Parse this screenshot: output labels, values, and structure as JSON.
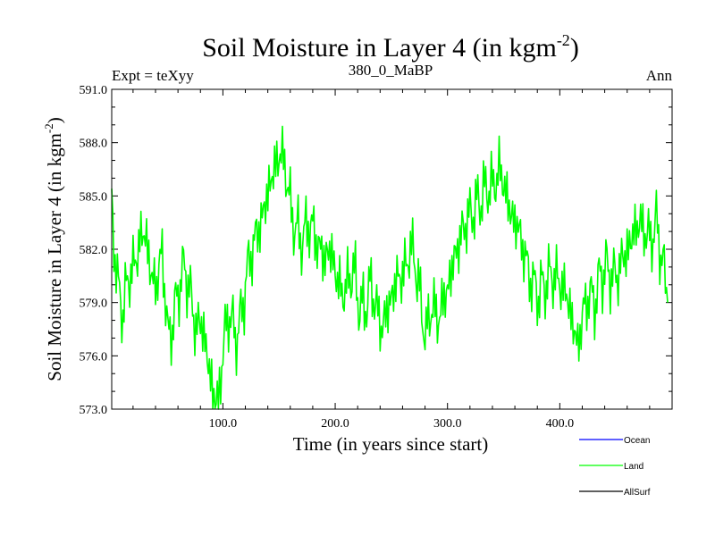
{
  "chart_data": {
    "type": "line",
    "title_main": "Soil Moisture in Layer 4 (in kgm",
    "title_sup": "-2",
    "title_close": ")",
    "subtitle_left": "Expt = teXyy",
    "subtitle_center": "380_0_MaBP",
    "subtitle_right": "Ann",
    "xlabel": "Time (in years since start)",
    "ylabel_main": "Soil Moisture in Layer 4 (in kgm",
    "ylabel_sup": "-2",
    "ylabel_close": ")",
    "xlim": [
      1,
      500
    ],
    "ylim": [
      573.0,
      591.0
    ],
    "x_ticks": [
      100,
      200,
      300,
      400
    ],
    "x_tick_labels": [
      "100.0",
      "200.0",
      "300.0",
      "400.0"
    ],
    "y_ticks": [
      573,
      576,
      579,
      582,
      585,
      588,
      591
    ],
    "y_tick_labels": [
      "573.0",
      "576.0",
      "579.0",
      "582.0",
      "585.0",
      "588.0",
      "591.0"
    ],
    "legend": [
      {
        "name": "Ocean",
        "color": "#0000ff"
      },
      {
        "name": "Land",
        "color": "#00ff00"
      },
      {
        "name": "AllSurf",
        "color": "#000000"
      }
    ],
    "series": [
      {
        "name": "Land",
        "color": "#00ff00",
        "x_start": 1,
        "x_step": 5,
        "values": [
          584.5,
          580.0,
          578.5,
          580.5,
          581.0,
          582.5,
          583.0,
          580.5,
          580.0,
          582.0,
          577.0,
          578.0,
          580.0,
          581.0,
          579.5,
          577.5,
          578.0,
          576.0,
          574.0,
          573.3,
          577.0,
          578.5,
          577.0,
          578.0,
          580.5,
          582.0,
          583.0,
          584.0,
          585.5,
          586.5,
          587.5,
          586.5,
          584.0,
          583.0,
          582.5,
          583.5,
          583.0,
          582.0,
          581.5,
          582.0,
          580.5,
          579.5,
          580.0,
          581.0,
          579.0,
          578.5,
          580.0,
          579.0,
          577.5,
          578.5,
          579.5,
          580.5,
          580.5,
          582.0,
          581.5,
          579.0,
          577.0,
          579.0,
          578.0,
          579.0,
          580.0,
          581.5,
          582.5,
          583.5,
          584.0,
          584.5,
          585.0,
          585.5,
          585.5,
          586.5,
          585.5,
          584.0,
          583.5,
          582.5,
          581.0,
          580.0,
          579.5,
          580.0,
          580.5,
          580.5,
          580.0,
          579.5,
          578.0,
          576.5,
          578.5,
          579.5,
          579.0,
          580.5,
          581.0,
          580.5,
          580.5,
          581.5,
          582.0,
          583.0,
          583.5,
          583.0,
          582.5,
          583.5,
          581.5,
          579.0
        ]
      }
    ]
  }
}
